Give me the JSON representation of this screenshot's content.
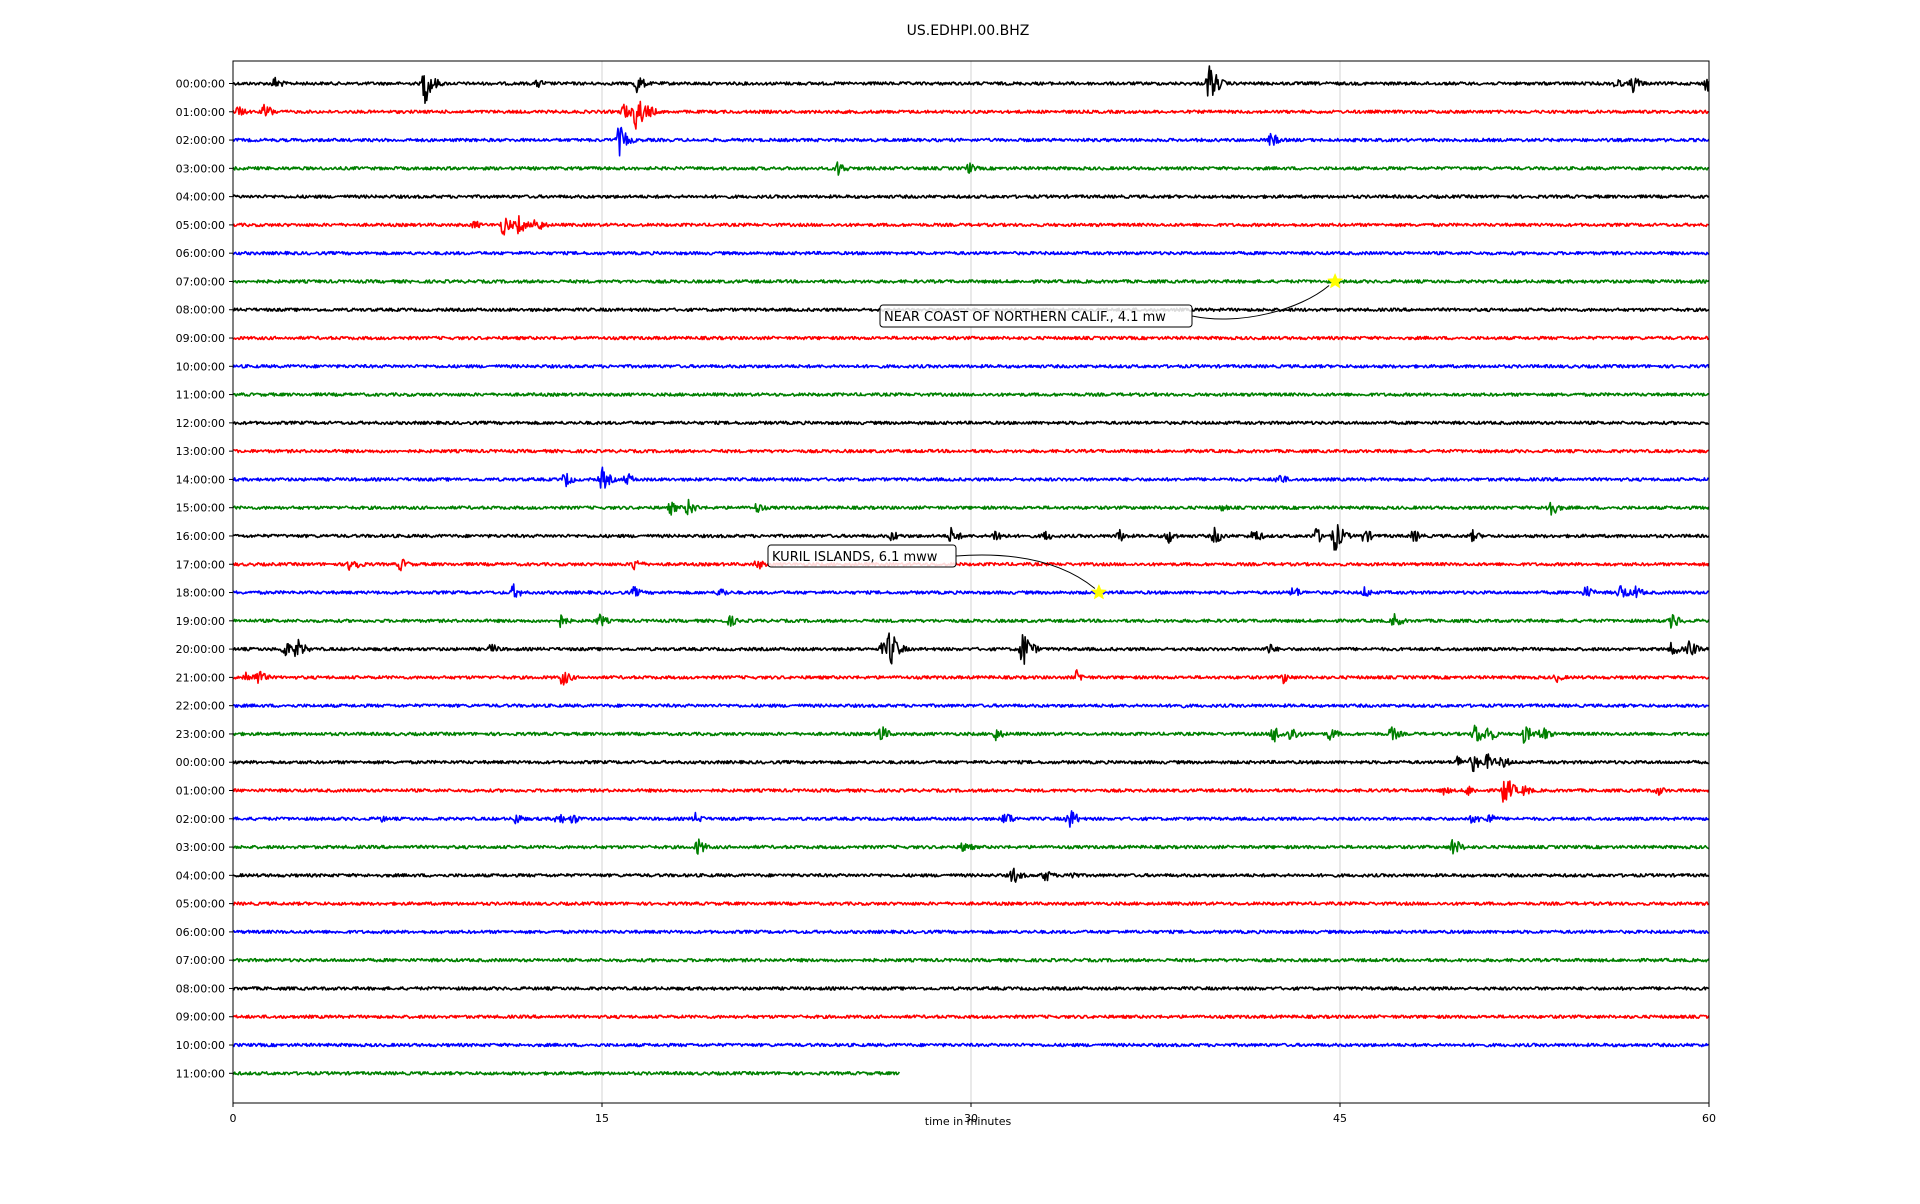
{
  "chart_data": {
    "type": "line",
    "title": "US.EDHPI.00.BHZ",
    "xlabel": "time in minutes",
    "ylabel": "",
    "xlim": [
      0,
      60
    ],
    "x_ticks": [
      "0",
      "15",
      "30",
      "45",
      "60"
    ],
    "x_tick_values": [
      0,
      15,
      30,
      45,
      60
    ],
    "grid": "vertical lines at ticks",
    "line_colors": [
      "#000000",
      "#ff0000",
      "#0000ff",
      "#008000"
    ],
    "row_labels": [
      "00:00:00",
      "01:00:00",
      "02:00:00",
      "03:00:00",
      "04:00:00",
      "05:00:00",
      "06:00:00",
      "07:00:00",
      "08:00:00",
      "09:00:00",
      "10:00:00",
      "11:00:00",
      "12:00:00",
      "13:00:00",
      "14:00:00",
      "15:00:00",
      "16:00:00",
      "17:00:00",
      "18:00:00",
      "19:00:00",
      "20:00:00",
      "21:00:00",
      "22:00:00",
      "23:00:00",
      "00:00:00",
      "01:00:00",
      "02:00:00",
      "03:00:00",
      "04:00:00",
      "05:00:00",
      "06:00:00",
      "07:00:00",
      "08:00:00",
      "09:00:00",
      "10:00:00",
      "11:00:00"
    ],
    "last_row_end_minute": 27.1,
    "events": [
      {
        "label": "NEAR COAST OF NORTHERN CALIF., 4.1 mw",
        "row": 7,
        "minute": 44.8
      },
      {
        "label": "KURIL ISLANDS, 6.1 mww",
        "row": 18,
        "minute": 35.2
      }
    ],
    "bursts": [
      [
        [
          1.7,
          0.35
        ],
        [
          7.8,
          1.0
        ],
        [
          12.4,
          0.25
        ],
        [
          16.4,
          0.5
        ],
        [
          39.7,
          1.0
        ],
        [
          56.2,
          0.3
        ],
        [
          56.9,
          0.45
        ],
        [
          59.9,
          0.45
        ]
      ],
      [
        [
          0.2,
          0.3
        ],
        [
          1.3,
          0.45
        ],
        [
          15.9,
          0.45
        ],
        [
          16.4,
          1.0
        ],
        [
          16.9,
          0.35
        ]
      ],
      [
        [
          15.7,
          0.75
        ],
        [
          16.0,
          0.3
        ],
        [
          42.2,
          0.4
        ]
      ],
      [
        [
          24.6,
          0.4
        ],
        [
          29.9,
          0.3
        ]
      ],
      [],
      [
        [
          9.8,
          0.25
        ],
        [
          11.0,
          0.55
        ],
        [
          11.6,
          0.5
        ],
        [
          12.3,
          0.45
        ]
      ],
      [],
      [
        [
          44.8,
          0.12
        ]
      ],
      [],
      [],
      [],
      [],
      [],
      [],
      [
        [
          13.5,
          0.4
        ],
        [
          15.0,
          0.6
        ],
        [
          16.0,
          0.35
        ],
        [
          42.5,
          0.35
        ]
      ],
      [
        [
          17.8,
          0.35
        ],
        [
          18.5,
          0.45
        ],
        [
          21.3,
          0.3
        ],
        [
          40.2,
          0.2
        ],
        [
          53.5,
          0.55
        ]
      ],
      [
        [
          26.8,
          0.3
        ],
        [
          29.2,
          0.45
        ],
        [
          31.0,
          0.4
        ],
        [
          33.0,
          0.3
        ],
        [
          36.0,
          0.35
        ],
        [
          38.0,
          0.4
        ],
        [
          39.9,
          0.45
        ],
        [
          41.5,
          0.4
        ],
        [
          44.0,
          0.45
        ],
        [
          44.8,
          0.8
        ],
        [
          46.0,
          0.4
        ],
        [
          48.0,
          0.35
        ],
        [
          50.4,
          0.3
        ]
      ],
      [
        [
          4.8,
          0.5
        ],
        [
          6.8,
          0.35
        ],
        [
          16.3,
          0.35
        ],
        [
          21.3,
          0.3
        ]
      ],
      [
        [
          11.4,
          0.4
        ],
        [
          16.3,
          0.3
        ],
        [
          19.8,
          0.3
        ],
        [
          43.1,
          0.35
        ],
        [
          46.0,
          0.3
        ],
        [
          55.0,
          0.35
        ],
        [
          56.4,
          0.45
        ],
        [
          57.0,
          0.35
        ]
      ],
      [
        [
          13.3,
          0.35
        ],
        [
          14.9,
          0.35
        ],
        [
          20.2,
          0.3
        ],
        [
          47.2,
          0.4
        ],
        [
          58.5,
          0.45
        ]
      ],
      [
        [
          2.1,
          0.45
        ],
        [
          2.6,
          0.55
        ],
        [
          10.5,
          0.3
        ],
        [
          26.4,
          0.35
        ],
        [
          26.7,
          1.0
        ],
        [
          32.1,
          1.0
        ],
        [
          42.1,
          0.3
        ],
        [
          58.5,
          0.4
        ],
        [
          59.2,
          0.45
        ]
      ],
      [
        [
          0.5,
          0.35
        ],
        [
          1.0,
          0.45
        ],
        [
          13.4,
          0.45
        ],
        [
          34.3,
          0.35
        ],
        [
          42.7,
          0.3
        ],
        [
          53.8,
          0.25
        ]
      ],
      [
        [
          38.4,
          0.2
        ]
      ],
      [
        [
          26.3,
          0.5
        ],
        [
          31.0,
          0.35
        ],
        [
          42.3,
          0.5
        ],
        [
          43.0,
          0.45
        ],
        [
          44.6,
          0.35
        ],
        [
          47.1,
          0.4
        ],
        [
          50.5,
          0.6
        ],
        [
          51.0,
          0.5
        ],
        [
          52.5,
          0.5
        ],
        [
          53.2,
          0.45
        ]
      ],
      [
        [
          49.8,
          0.35
        ],
        [
          50.4,
          0.5
        ],
        [
          51.0,
          0.45
        ],
        [
          51.6,
          0.35
        ]
      ],
      [
        [
          49.2,
          0.25
        ],
        [
          50.2,
          0.3
        ],
        [
          51.7,
          0.85
        ],
        [
          52.5,
          0.3
        ],
        [
          57.9,
          0.3
        ]
      ],
      [
        [
          6.0,
          0.2
        ],
        [
          11.5,
          0.3
        ],
        [
          13.2,
          0.35
        ],
        [
          13.8,
          0.3
        ],
        [
          18.8,
          0.3
        ],
        [
          31.4,
          0.4
        ],
        [
          34.0,
          0.55
        ],
        [
          50.4,
          0.3
        ],
        [
          51.0,
          0.35
        ]
      ],
      [
        [
          18.9,
          0.45
        ],
        [
          29.7,
          0.35
        ],
        [
          49.6,
          0.5
        ]
      ],
      [
        [
          31.7,
          0.45
        ],
        [
          33.0,
          0.35
        ],
        [
          34.0,
          0.3
        ]
      ],
      [],
      [],
      [],
      [],
      [],
      [],
      []
    ]
  }
}
